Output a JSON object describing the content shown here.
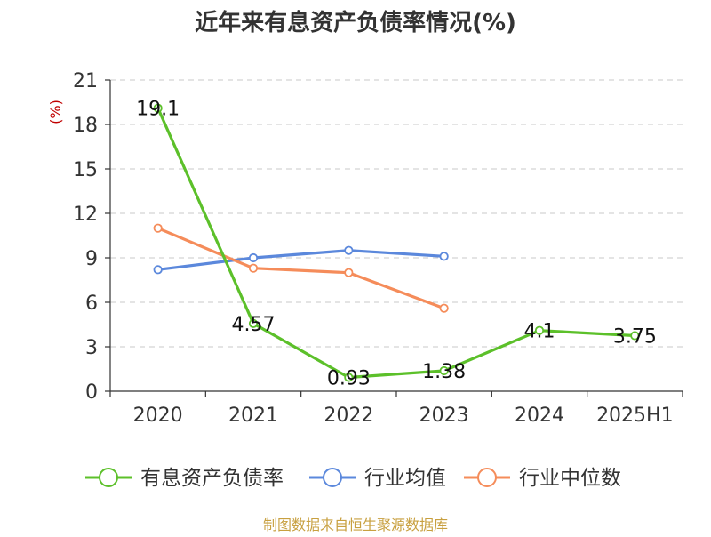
{
  "chart_data": {
    "type": "line",
    "title": "近年来有息资产负债率情况(%)",
    "ylabel": "(%)",
    "xlabel": "",
    "categories": [
      "2020",
      "2021",
      "2022",
      "2023",
      "2024",
      "2025H1"
    ],
    "ylim": [
      0,
      21
    ],
    "yticks": [
      0,
      3,
      6,
      9,
      12,
      15,
      18,
      21
    ],
    "grid": true,
    "legend_position": "bottom",
    "series": [
      {
        "name": "有息资产负债率",
        "color": "#5cc02a",
        "values": [
          19.1,
          4.57,
          0.93,
          1.38,
          4.1,
          3.75
        ],
        "labels": [
          "19.1",
          "4.57",
          "0.93",
          "1.38",
          "4.1",
          "3.75"
        ]
      },
      {
        "name": "行业均值",
        "color": "#5b88dc",
        "values": [
          8.2,
          9.0,
          9.5,
          9.1,
          null,
          null
        ]
      },
      {
        "name": "行业中位数",
        "color": "#f58c5a",
        "values": [
          11.0,
          8.3,
          8.0,
          5.6,
          null,
          null
        ]
      }
    ],
    "source": "制图数据来自恒生聚源数据库"
  }
}
